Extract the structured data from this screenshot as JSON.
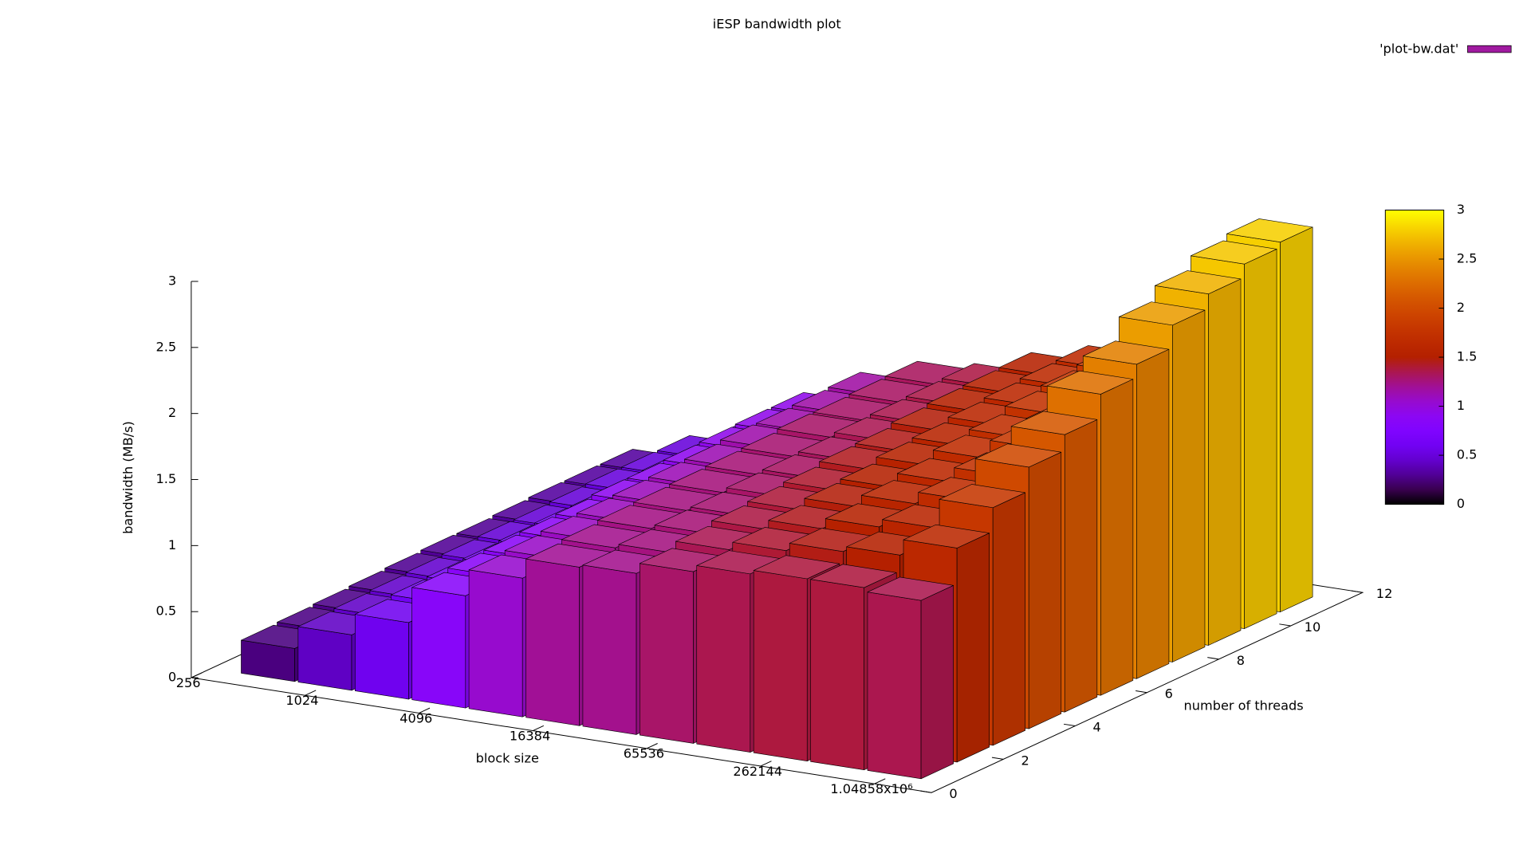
{
  "chart_data": {
    "type": "bar3d",
    "title": "iESP bandwidth plot",
    "xlabel": "block size",
    "ylabel": "number of threads",
    "zlabel": "bandwidth (MB/s)",
    "x": [
      512,
      1024,
      2048,
      4096,
      8192,
      16384,
      32768,
      65536,
      131072,
      262144,
      524288,
      1048576
    ],
    "y": [
      1,
      2,
      3,
      4,
      5,
      6,
      7,
      8,
      9,
      10,
      11
    ],
    "values": [
      [
        0.25,
        0.42,
        0.58,
        0.85,
        1.05,
        1.2,
        1.22,
        1.3,
        1.35,
        1.38,
        1.38,
        1.35
      ],
      [
        0.26,
        0.43,
        0.6,
        0.87,
        1.07,
        1.22,
        1.25,
        1.34,
        1.4,
        1.46,
        1.5,
        1.62
      ],
      [
        0.27,
        0.44,
        0.61,
        0.88,
        1.09,
        1.24,
        1.27,
        1.37,
        1.44,
        1.52,
        1.58,
        1.8
      ],
      [
        0.28,
        0.45,
        0.62,
        0.89,
        1.1,
        1.25,
        1.28,
        1.39,
        1.48,
        1.57,
        1.66,
        1.98
      ],
      [
        0.29,
        0.46,
        0.63,
        0.9,
        1.11,
        1.26,
        1.3,
        1.41,
        1.5,
        1.61,
        1.72,
        2.1
      ],
      [
        0.3,
        0.47,
        0.64,
        0.92,
        1.12,
        1.27,
        1.31,
        1.44,
        1.54,
        1.66,
        1.8,
        2.28
      ],
      [
        0.3,
        0.47,
        0.64,
        0.92,
        1.13,
        1.28,
        1.32,
        1.45,
        1.56,
        1.69,
        1.84,
        2.38
      ],
      [
        0.31,
        0.48,
        0.65,
        0.93,
        1.15,
        1.3,
        1.34,
        1.48,
        1.59,
        1.74,
        1.92,
        2.55
      ],
      [
        0.32,
        0.49,
        0.66,
        0.94,
        1.15,
        1.3,
        1.35,
        1.5,
        1.61,
        1.77,
        1.97,
        2.66
      ],
      [
        0.32,
        0.49,
        0.66,
        0.95,
        1.16,
        1.31,
        1.36,
        1.51,
        1.63,
        1.8,
        2.01,
        2.76
      ],
      [
        0.32,
        0.49,
        0.67,
        0.95,
        1.17,
        1.32,
        1.37,
        1.52,
        1.64,
        1.82,
        2.03,
        2.8
      ]
    ],
    "xscale": "log2",
    "xlim": [
      256,
      2097152
    ],
    "xticks": [
      256,
      1024,
      4096,
      16384,
      65536,
      262144,
      {
        "value": 1048576,
        "label": "1.04858x10⁶"
      }
    ],
    "ylim": [
      0,
      12
    ],
    "yticks": [
      0,
      2,
      4,
      6,
      8,
      10,
      12
    ],
    "zlim": [
      0,
      3
    ],
    "zticks": [
      0,
      0.5,
      1,
      1.5,
      2,
      2.5,
      3
    ],
    "cblim": [
      0,
      3
    ],
    "cbticks": [
      0,
      0.5,
      1,
      1.5,
      2,
      2.5,
      3
    ],
    "legend": {
      "label": "'plot-bw.dat'",
      "color": "#a01aa0",
      "position": "top right"
    }
  }
}
